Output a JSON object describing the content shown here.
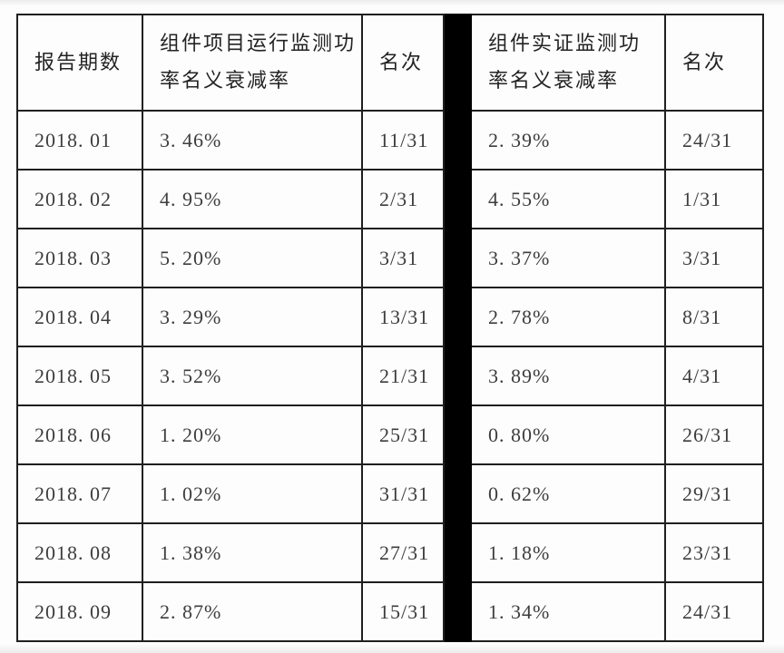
{
  "colors": {
    "border": "#1f1f1f",
    "separator_bar": "#000000",
    "cell_background": "#fdfdfd",
    "text": "#3d3d3d"
  },
  "table": {
    "headers": {
      "period": "报告期数",
      "operation_rate": "组件项目运行监测功率名义衰减率",
      "operation_rank": "名次",
      "empirical_rate": "组件实证监测功率名义衰减率",
      "empirical_rank": "名次"
    },
    "rows": [
      [
        "2018. 01",
        "3. 46%",
        "11/31",
        "2. 39%",
        "24/31"
      ],
      [
        "2018. 02",
        "4. 95%",
        "2/31",
        "4. 55%",
        "1/31"
      ],
      [
        "2018. 03",
        "5. 20%",
        "3/31",
        "3. 37%",
        "3/31"
      ],
      [
        "2018. 04",
        "3. 29%",
        "13/31",
        "2. 78%",
        "8/31"
      ],
      [
        "2018. 05",
        "3. 52%",
        "21/31",
        "3. 89%",
        "4/31"
      ],
      [
        "2018. 06",
        "1. 20%",
        "25/31",
        "0. 80%",
        "26/31"
      ],
      [
        "2018. 07",
        "1. 02%",
        "31/31",
        "0. 62%",
        "29/31"
      ],
      [
        "2018. 08",
        "1. 38%",
        "27/31",
        "1. 18%",
        "23/31"
      ],
      [
        "2018. 09",
        "2. 87%",
        "15/31",
        "1. 34%",
        "24/31"
      ]
    ]
  }
}
